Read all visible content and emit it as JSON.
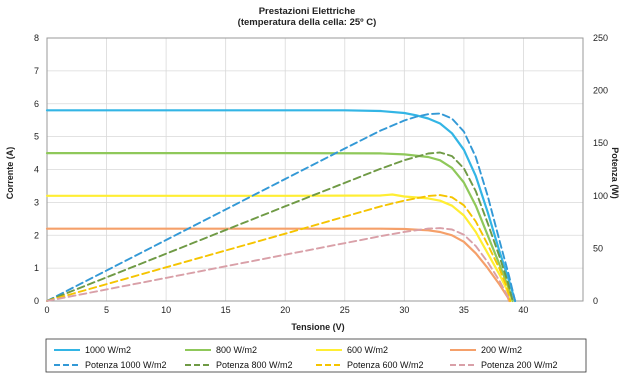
{
  "chart_data": {
    "type": "line",
    "title": "Prestazioni Elettriche",
    "subtitle": "(temperatura della cella: 25º C)",
    "xlabel": "Tensione (V)",
    "ylabel": "Corrente (A)",
    "y2label": "Potenza (W)",
    "xlim": [
      0,
      45
    ],
    "ylim": [
      0,
      8
    ],
    "y2lim": [
      0,
      250
    ],
    "xticks": [
      "0",
      "5",
      "10",
      "15",
      "20",
      "25",
      "30",
      "35",
      "40"
    ],
    "yticks": [
      "0",
      "1",
      "2",
      "3",
      "4",
      "5",
      "6",
      "7",
      "8"
    ],
    "y2ticks": [
      "0",
      "50",
      "100",
      "150",
      "200",
      "250"
    ],
    "grid": true,
    "legend_position": "bottom",
    "series": [
      {
        "name": "1000 W/m2",
        "axis": "current",
        "color": "#33b5e5",
        "dash": false,
        "points": [
          [
            0,
            5.8
          ],
          [
            10,
            5.8
          ],
          [
            20,
            5.8
          ],
          [
            25,
            5.8
          ],
          [
            28,
            5.78
          ],
          [
            30,
            5.72
          ],
          [
            31,
            5.65
          ],
          [
            32,
            5.55
          ],
          [
            33,
            5.4
          ],
          [
            34,
            5.1
          ],
          [
            35,
            4.6
          ],
          [
            36,
            3.8
          ],
          [
            37,
            2.7
          ],
          [
            38,
            1.5
          ],
          [
            38.8,
            0.6
          ],
          [
            39.3,
            0
          ]
        ]
      },
      {
        "name": "800 W/m2",
        "axis": "current",
        "color": "#8fc85a",
        "dash": false,
        "points": [
          [
            0,
            4.5
          ],
          [
            10,
            4.5
          ],
          [
            20,
            4.5
          ],
          [
            28,
            4.49
          ],
          [
            30,
            4.46
          ],
          [
            32,
            4.38
          ],
          [
            33,
            4.28
          ],
          [
            34,
            4.05
          ],
          [
            35,
            3.6
          ],
          [
            36,
            2.9
          ],
          [
            37,
            2.0
          ],
          [
            38,
            1.1
          ],
          [
            38.7,
            0.45
          ],
          [
            39.1,
            0
          ]
        ]
      },
      {
        "name": "600 W/m2",
        "axis": "current",
        "color": "#ffee33",
        "dash": false,
        "points": [
          [
            0,
            3.2
          ],
          [
            10,
            3.2
          ],
          [
            20,
            3.2
          ],
          [
            28,
            3.21
          ],
          [
            29,
            3.24
          ],
          [
            30,
            3.18
          ],
          [
            32,
            3.12
          ],
          [
            33,
            3.05
          ],
          [
            34,
            2.9
          ],
          [
            35,
            2.6
          ],
          [
            36,
            2.1
          ],
          [
            37,
            1.45
          ],
          [
            38,
            0.8
          ],
          [
            38.6,
            0.35
          ],
          [
            38.9,
            0
          ]
        ]
      },
      {
        "name": "200 W/m2",
        "axis": "current",
        "color": "#f5a06a",
        "dash": false,
        "points": [
          [
            0,
            2.2
          ],
          [
            10,
            2.2
          ],
          [
            20,
            2.2
          ],
          [
            28,
            2.2
          ],
          [
            30,
            2.19
          ],
          [
            32,
            2.15
          ],
          [
            33,
            2.1
          ],
          [
            34,
            2.0
          ],
          [
            35,
            1.8
          ],
          [
            36,
            1.45
          ],
          [
            37,
            1.0
          ],
          [
            38,
            0.5
          ],
          [
            38.7,
            0.1
          ],
          [
            38.8,
            0
          ]
        ]
      },
      {
        "name": "Potenza 1000 W/m2",
        "axis": "power",
        "color": "#3399d6",
        "dash": true,
        "points": [
          [
            0,
            0
          ],
          [
            10,
            58
          ],
          [
            20,
            116
          ],
          [
            25,
            145
          ],
          [
            28,
            162
          ],
          [
            30,
            171.6
          ],
          [
            31,
            175.2
          ],
          [
            32,
            177.6
          ],
          [
            33,
            178.2
          ],
          [
            34,
            173.4
          ],
          [
            35,
            161
          ],
          [
            36,
            136.8
          ],
          [
            37,
            99.9
          ],
          [
            38,
            57
          ],
          [
            38.8,
            23.3
          ],
          [
            39.3,
            0
          ]
        ]
      },
      {
        "name": "Potenza 800 W/m2",
        "axis": "power",
        "color": "#6f9a45",
        "dash": true,
        "points": [
          [
            0,
            0
          ],
          [
            10,
            45
          ],
          [
            20,
            90
          ],
          [
            28,
            125.7
          ],
          [
            30,
            133.8
          ],
          [
            32,
            140.2
          ],
          [
            33,
            141.2
          ],
          [
            34,
            137.7
          ],
          [
            35,
            126
          ],
          [
            36,
            104.4
          ],
          [
            37,
            74
          ],
          [
            38,
            41.8
          ],
          [
            38.7,
            17.4
          ],
          [
            39.1,
            0
          ]
        ]
      },
      {
        "name": "Potenza 600 W/m2",
        "axis": "power",
        "color": "#f5c400",
        "dash": true,
        "points": [
          [
            0,
            0
          ],
          [
            10,
            32
          ],
          [
            20,
            64
          ],
          [
            28,
            89.9
          ],
          [
            30,
            95.4
          ],
          [
            32,
            99.8
          ],
          [
            33,
            100.7
          ],
          [
            34,
            98.6
          ],
          [
            35,
            91
          ],
          [
            36,
            75.6
          ],
          [
            37,
            53.7
          ],
          [
            38,
            30.4
          ],
          [
            38.6,
            13.5
          ],
          [
            38.9,
            0
          ]
        ]
      },
      {
        "name": "Potenza 200 W/m2",
        "axis": "power",
        "color": "#d9a0a8",
        "dash": true,
        "points": [
          [
            0,
            0
          ],
          [
            10,
            22
          ],
          [
            20,
            44
          ],
          [
            28,
            61.6
          ],
          [
            30,
            65.7
          ],
          [
            32,
            68.8
          ],
          [
            33,
            69.3
          ],
          [
            34,
            68
          ],
          [
            35,
            63
          ],
          [
            36,
            52.2
          ],
          [
            37,
            37
          ],
          [
            38,
            19
          ],
          [
            38.7,
            3.9
          ],
          [
            38.8,
            0
          ]
        ]
      }
    ]
  }
}
